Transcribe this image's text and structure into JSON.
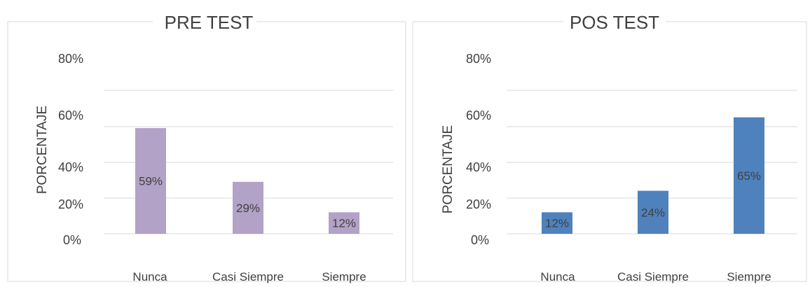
{
  "charts": [
    {
      "id": "pre",
      "title": "PRE TEST",
      "ylabel": "PORCENTAJE",
      "tick_labels": [
        "80%",
        "60%",
        "40%",
        "20%",
        "0%"
      ],
      "categories": [
        "Nunca",
        "Casi Siempre",
        "Siempre"
      ],
      "data_labels": [
        "59%",
        "29%",
        "12%"
      ],
      "color": "#B3A2C7"
    },
    {
      "id": "pos",
      "title": "POS TEST",
      "ylabel": "PORCENTAJE",
      "tick_labels": [
        "80%",
        "60%",
        "40%",
        "20%",
        "0%"
      ],
      "categories": [
        "Nunca",
        "Casi Siempre",
        "Siempre"
      ],
      "data_labels": [
        "12%",
        "24%",
        "65%"
      ],
      "color": "#4F81BD"
    }
  ],
  "chart_data": [
    {
      "type": "bar",
      "title": "PRE TEST",
      "ylabel": "PORCENTAJE",
      "xlabel": "",
      "categories": [
        "Nunca",
        "Casi Siempre",
        "Siempre"
      ],
      "values": [
        59,
        29,
        12
      ],
      "ylim": [
        0,
        80
      ],
      "grid": true,
      "legend": "none"
    },
    {
      "type": "bar",
      "title": "POS TEST",
      "ylabel": "PORCENTAJE",
      "xlabel": "",
      "categories": [
        "Nunca",
        "Casi Siempre",
        "Siempre"
      ],
      "values": [
        12,
        24,
        65
      ],
      "ylim": [
        0,
        80
      ],
      "grid": true,
      "legend": "none"
    }
  ]
}
